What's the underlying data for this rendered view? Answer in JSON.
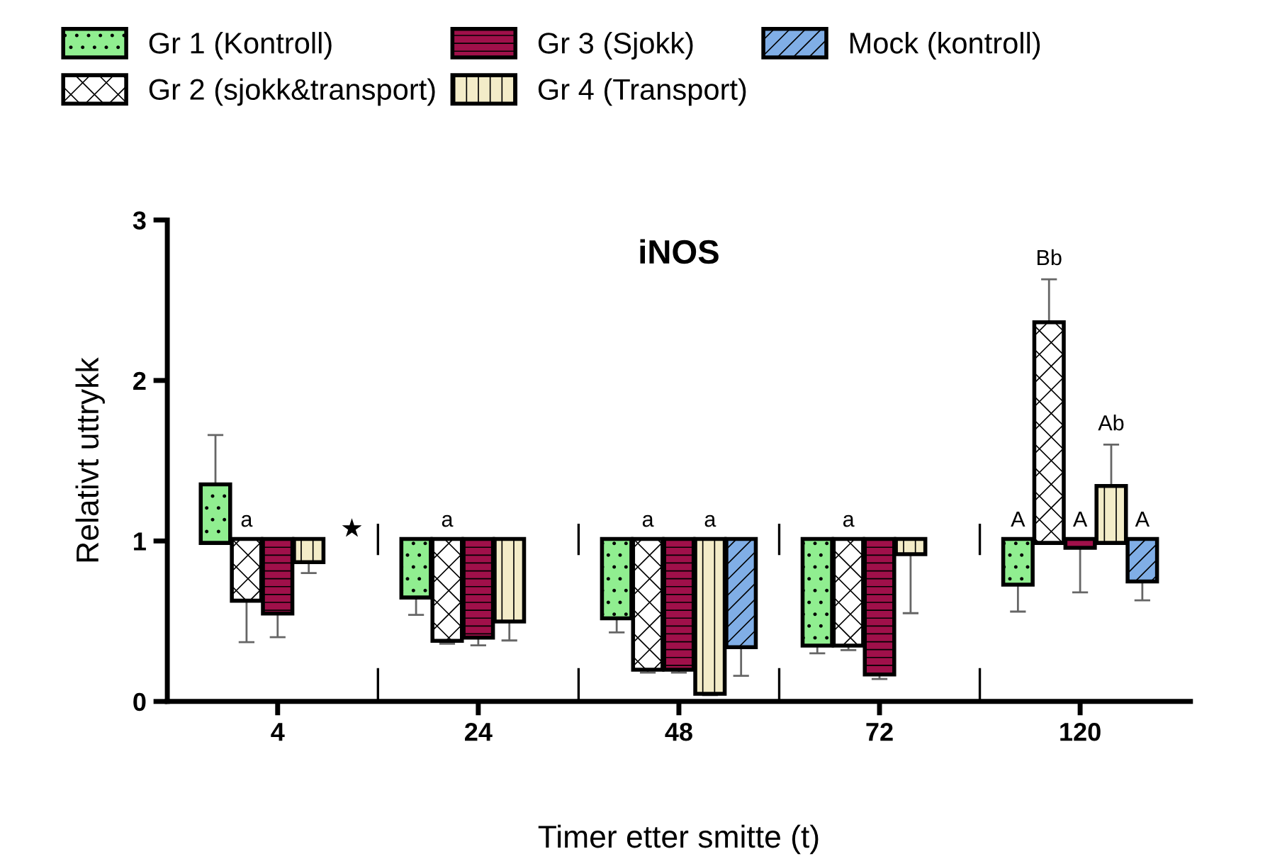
{
  "chart_data": {
    "type": "bar",
    "title": "iNOS",
    "xlabel": "Timer etter smitte (t)",
    "ylabel": "Relativt uttrykk",
    "categories": [
      "4",
      "24",
      "48",
      "72",
      "120"
    ],
    "series": [
      {
        "name": "Gr 1 (Kontroll)",
        "color": "#90ee90",
        "base": [
          1,
          1,
          1,
          1,
          1
        ],
        "values": [
          0.34,
          -0.34,
          -0.47,
          -0.64,
          -0.26
        ],
        "errors": [
          [
            1.34,
            1.66
          ],
          [
            0.54,
            0.66
          ],
          [
            0.43,
            0.53
          ],
          [
            0.3,
            0.36
          ],
          [
            0.56,
            0.74
          ]
        ],
        "value_labels": [
          null,
          null,
          null,
          null,
          "A"
        ]
      },
      {
        "name": "Gr 2 (sjokk&transport)",
        "color": "#ffffff",
        "base": [
          1,
          1,
          1,
          1,
          1
        ],
        "values": [
          -0.36,
          -0.61,
          -0.79,
          -0.64,
          1.35
        ],
        "errors": [
          [
            0.37,
            0.64
          ],
          [
            0.36,
            0.39
          ],
          [
            0.18,
            0.21
          ],
          [
            0.32,
            0.36
          ],
          [
            2.35,
            2.63
          ]
        ],
        "value_labels": [
          "a",
          "a",
          "a",
          "a",
          "Bb"
        ]
      },
      {
        "name": "Gr 3 (Sjokk)",
        "color": "#a0104a",
        "base": [
          1,
          1,
          1,
          1,
          1
        ],
        "values": [
          -0.44,
          -0.59,
          -0.79,
          -0.82,
          -0.03
        ],
        "errors": [
          [
            0.4,
            0.56
          ],
          [
            0.35,
            0.41
          ],
          [
            0.18,
            0.21
          ],
          [
            0.14,
            0.18
          ],
          [
            0.68,
            0.97
          ]
        ],
        "value_labels": [
          null,
          null,
          null,
          null,
          "A"
        ]
      },
      {
        "name": "Gr 4 (Transport)",
        "color": "#f3ecc8",
        "base": [
          1,
          1,
          1,
          1,
          1
        ],
        "values": [
          -0.12,
          -0.49,
          -0.94,
          -0.07,
          0.33
        ],
        "errors": [
          [
            0.8,
            0.88
          ],
          [
            0.38,
            0.51
          ],
          [
            0.04,
            0.06
          ],
          [
            0.55,
            0.93
          ],
          [
            1.33,
            1.6
          ]
        ],
        "value_labels": [
          null,
          null,
          "a",
          null,
          "Ab"
        ]
      },
      {
        "name": "Mock (kontroll)",
        "color": "#80aee6",
        "base": [
          null,
          null,
          1,
          null,
          1
        ],
        "values": [
          null,
          null,
          -0.65,
          null,
          -0.24
        ],
        "errors": [
          null,
          null,
          [
            0.16,
            0.35
          ],
          null,
          [
            0.63,
            0.76
          ]
        ],
        "value_labels": [
          null,
          null,
          null,
          null,
          "A"
        ]
      }
    ],
    "ylim": [
      0,
      3
    ],
    "yticks": [
      0,
      1,
      2,
      3
    ],
    "grid": false,
    "legend": "top left",
    "annotations": [
      "★"
    ]
  }
}
